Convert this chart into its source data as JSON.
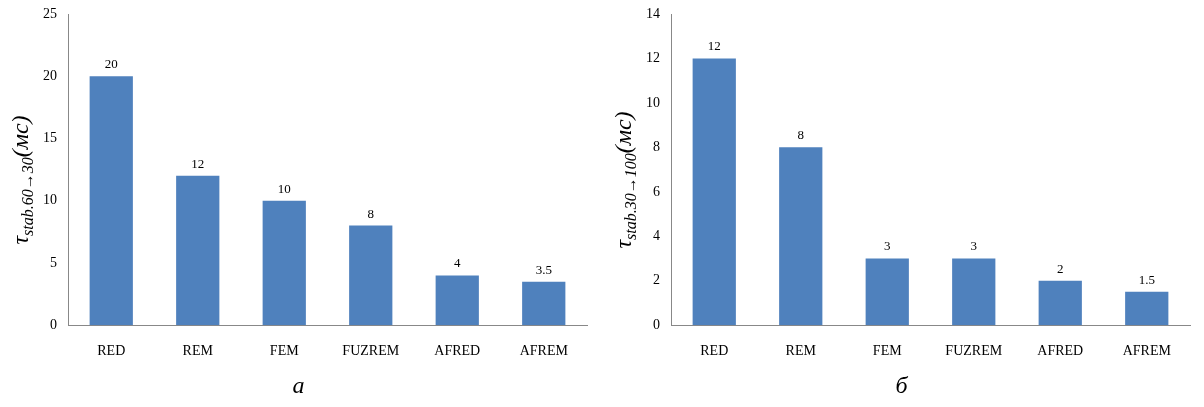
{
  "chart_data": [
    {
      "type": "bar",
      "categories": [
        "RED",
        "REM",
        "FEM",
        "FUZREM",
        "AFRED",
        "AFREM"
      ],
      "values": [
        20,
        12,
        10,
        8,
        4,
        3.5
      ],
      "color": "#4f81bd",
      "ylim": [
        0,
        25
      ],
      "yticks": [
        0,
        5,
        10,
        15,
        20,
        25
      ],
      "ylabel": "τ$_{stab.60→30}$(мс)",
      "xlabel": "а",
      "data_labels": true,
      "grid": false,
      "legend": false
    },
    {
      "type": "bar",
      "categories": [
        "RED",
        "REM",
        "FEM",
        "FUZREM",
        "AFRED",
        "AFREM"
      ],
      "values": [
        12,
        8,
        3,
        3,
        2,
        1.5
      ],
      "color": "#4f81bd",
      "ylim": [
        0,
        14
      ],
      "yticks": [
        0,
        2,
        4,
        6,
        8,
        10,
        12,
        14
      ],
      "ylabel": "τ$_{stab.30→100}$(мс)",
      "xlabel": "б",
      "data_labels": true,
      "grid": false,
      "legend": false
    }
  ]
}
